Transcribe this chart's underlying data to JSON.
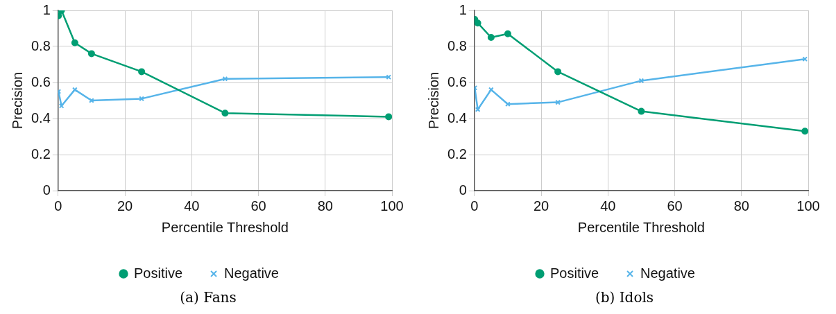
{
  "chart_data": [
    {
      "type": "line",
      "xlabel": "Percentile Threshold",
      "ylabel": "Precision",
      "x": [
        0.1,
        1,
        5,
        10,
        25,
        50,
        99
      ],
      "xlim": [
        0,
        100
      ],
      "xticks": [
        0,
        20,
        40,
        60,
        80,
        100
      ],
      "ylim": [
        0,
        1
      ],
      "yticks": [
        0,
        0.2,
        0.4,
        0.6,
        0.8,
        1
      ],
      "grid": true,
      "legend": "bottom",
      "annotations": [
        "(a) Fans"
      ],
      "series": [
        {
          "name": "Positive",
          "color": "#009e73",
          "marker": "circle",
          "values": [
            0.97,
            1.0,
            0.82,
            0.76,
            0.66,
            0.43,
            0.41
          ]
        },
        {
          "name": "Negative",
          "color": "#56b4e9",
          "marker": "cross",
          "values": [
            0.55,
            0.47,
            0.56,
            0.5,
            0.51,
            0.62,
            0.63
          ]
        }
      ]
    },
    {
      "type": "line",
      "xlabel": "Percentile Threshold",
      "ylabel": "Precision",
      "x": [
        0.1,
        1,
        5,
        10,
        25,
        50,
        99
      ],
      "xlim": [
        0,
        100
      ],
      "xticks": [
        0,
        20,
        40,
        60,
        80,
        100
      ],
      "ylim": [
        0,
        1
      ],
      "yticks": [
        0,
        0.2,
        0.4,
        0.6,
        0.8,
        1
      ],
      "grid": true,
      "legend": "bottom",
      "annotations": [
        "(b) Idols"
      ],
      "series": [
        {
          "name": "Positive",
          "color": "#009e73",
          "marker": "circle",
          "values": [
            0.95,
            0.93,
            0.85,
            0.87,
            0.66,
            0.44,
            0.33
          ]
        },
        {
          "name": "Negative",
          "color": "#56b4e9",
          "marker": "cross",
          "values": [
            0.57,
            0.45,
            0.56,
            0.48,
            0.49,
            0.61,
            0.73
          ]
        }
      ]
    }
  ]
}
